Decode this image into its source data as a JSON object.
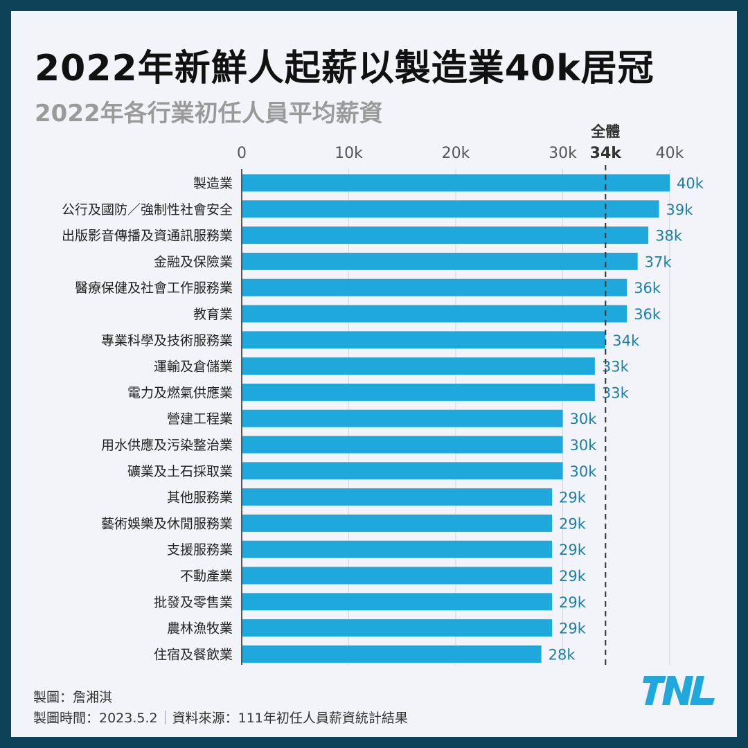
{
  "title": "2022年新鮮人起薪以製造業40k居冠",
  "subtitle": "2022年各行業初任人員平均薪資",
  "chart_data": {
    "type": "bar",
    "orientation": "horizontal",
    "categories": [
      "製造業",
      "公行及國防／強制性社會安全",
      "出版影音傳播及資通訊服務業",
      "金融及保險業",
      "醫療保健及社會工作服務業",
      "教育業",
      "專業科學及技術服務業",
      "運輸及倉儲業",
      "電力及燃氣供應業",
      "營建工程業",
      "用水供應及污染整治業",
      "礦業及土石採取業",
      "其他服務業",
      "藝術娛樂及休閒服務業",
      "支援服務業",
      "不動產業",
      "批發及零售業",
      "農林漁牧業",
      "住宿及餐飲業"
    ],
    "values": [
      40,
      39,
      38,
      37,
      36,
      36,
      34,
      33,
      33,
      30,
      30,
      30,
      29,
      29,
      29,
      29,
      29,
      29,
      28
    ],
    "value_labels": [
      "40k",
      "39k",
      "38k",
      "37k",
      "36k",
      "36k",
      "34k",
      "33k",
      "33k",
      "30k",
      "30k",
      "30k",
      "29k",
      "29k",
      "29k",
      "29k",
      "29k",
      "29k",
      "28k"
    ],
    "x_ticks": [
      0,
      10,
      20,
      30,
      40
    ],
    "x_tick_labels": [
      "0",
      "10k",
      "20k",
      "30k",
      "40k"
    ],
    "xlim": [
      0,
      40
    ],
    "axis_position": "top",
    "reference_line": {
      "value": 34,
      "label": "全體",
      "value_label": "34k",
      "style": "dashed"
    },
    "bar_color": "#1fa8dc",
    "value_label_color": "#1a7fa8",
    "gridlines": true
  },
  "footer": {
    "author_line": "製圖：詹湘淇",
    "time_label": "製圖時間：2023.5.2",
    "source_label": "資料來源：111年初任人員薪資統計結果"
  },
  "logo": {
    "text": "TNL",
    "color": "#1fa8dc"
  },
  "colors": {
    "frame": "#0d4259",
    "background": "#f3f4f9",
    "title": "#111111",
    "subtitle": "#9a9a9a"
  }
}
